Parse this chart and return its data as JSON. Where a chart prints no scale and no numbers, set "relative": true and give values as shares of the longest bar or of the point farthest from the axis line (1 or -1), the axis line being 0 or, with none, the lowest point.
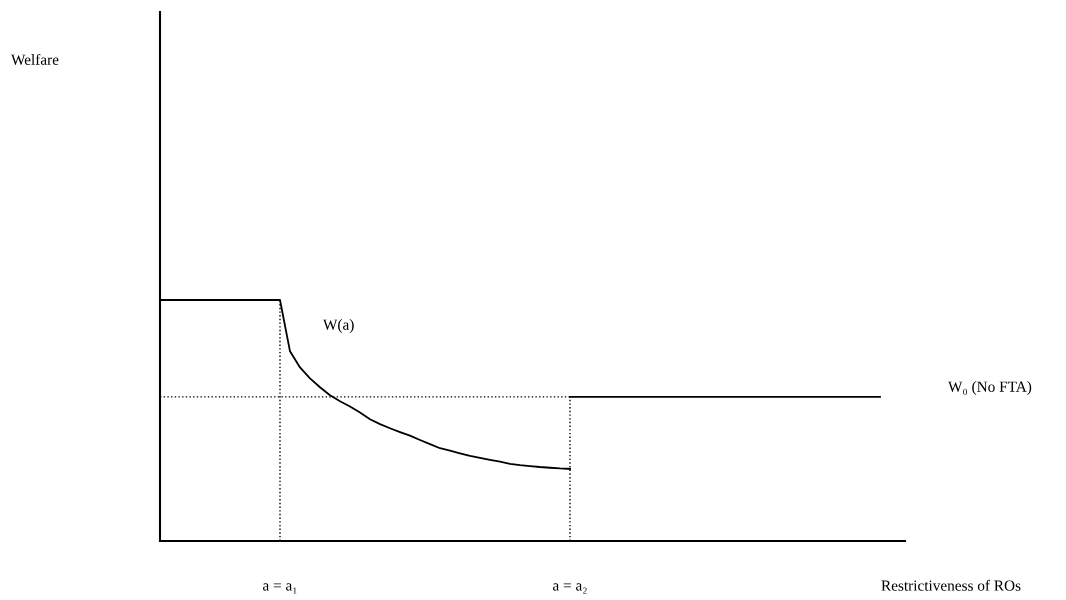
{
  "chart_data": {
    "type": "line",
    "relative": true,
    "xlabel": "Restrictiveness of ROs",
    "categories": [
      null,
      null,
      null,
      null,
      null,
      null,
      null,
      null,
      null,
      null,
      null,
      null,
      "a = a₁",
      null,
      null,
      null,
      null,
      null,
      null,
      null,
      null,
      null,
      null,
      null,
      null,
      null,
      null,
      null,
      null,
      null,
      null,
      null,
      null,
      null,
      null,
      null,
      null,
      null,
      null,
      null,
      null,
      "a = a₂",
      null,
      null,
      null,
      null,
      null,
      null,
      null,
      null,
      null,
      null,
      null,
      null,
      null,
      null,
      null,
      null,
      null,
      null,
      null,
      null,
      null,
      null,
      null,
      null,
      null,
      null,
      null,
      null,
      null,
      null,
      null
    ],
    "series": [
      {
        "color": "#000000",
        "line_style": "solid",
        "values": [
          1,
          1,
          1,
          1,
          1,
          1,
          1,
          1,
          1,
          1,
          1,
          1,
          1,
          0.787,
          0.72,
          0.675,
          0.638,
          0.605,
          0.58,
          0.558,
          0.533,
          0.505,
          0.485,
          0.468,
          0.452,
          0.437,
          0.419,
          0.402,
          0.385,
          0.375,
          0.364,
          0.353,
          0.345,
          0.337,
          0.329,
          0.32,
          0.315,
          0.311,
          0.307,
          0.304,
          0.301,
          0.299,
          null,
          null,
          null,
          null,
          null,
          null,
          null,
          null,
          null,
          null,
          null,
          null,
          null,
          null,
          null,
          null,
          null,
          null,
          null,
          null,
          null,
          null,
          null,
          null,
          null,
          null,
          null,
          null,
          null,
          null,
          null
        ]
      },
      {
        "color": "#000000",
        "line_style": "solid",
        "values": [
          null,
          null,
          null,
          null,
          null,
          null,
          null,
          null,
          null,
          null,
          null,
          null,
          null,
          null,
          null,
          null,
          null,
          null,
          null,
          null,
          null,
          null,
          null,
          null,
          null,
          null,
          null,
          null,
          null,
          null,
          null,
          null,
          null,
          null,
          null,
          null,
          null,
          null,
          null,
          null,
          null,
          0.598,
          0.598,
          0.598,
          0.598,
          0.598,
          0.598,
          0.598,
          0.598,
          0.598,
          0.598,
          0.598,
          0.598,
          0.598,
          0.598,
          0.598,
          0.598,
          0.598,
          0.598,
          0.598,
          0.598,
          0.598,
          0.598,
          0.598,
          0.598,
          0.598,
          0.598,
          0.598,
          0.598,
          0.598,
          0.598,
          0.598,
          0.598
        ]
      },
      {
        "color": "#000000",
        "line_style": "dotted",
        "values": [
          0.598,
          0.598,
          0.598,
          0.598,
          0.598,
          0.598,
          0.598,
          0.598,
          0.598,
          0.598,
          0.598,
          0.598,
          0.598,
          0.598,
          0.598,
          0.598,
          0.598,
          0.598,
          0.598,
          0.598,
          0.598,
          0.598,
          0.598,
          0.598,
          0.598,
          0.598,
          0.598,
          0.598,
          0.598,
          0.598,
          0.598,
          0.598,
          0.598,
          0.598,
          0.598,
          0.598,
          0.598,
          0.598,
          0.598,
          0.598,
          0.598,
          0.598,
          null,
          null,
          null,
          null,
          null,
          null,
          null,
          null,
          null,
          null,
          null,
          null,
          null,
          null,
          null,
          null,
          null,
          null,
          null,
          null,
          null,
          null,
          null,
          null,
          null,
          null,
          null,
          null,
          null,
          null,
          null
        ]
      }
    ],
    "ref_lines": [
      {
        "axis": "x",
        "value": "a = a₁",
        "line_style": "dotted",
        "color": "#000000"
      },
      {
        "axis": "x",
        "value": "a = a₂",
        "line_style": "dotted",
        "color": "#000000"
      }
    ],
    "annotations": [
      "Welfare",
      "W(a)",
      "W₀ (No FTA)"
    ],
    "grid": false,
    "legend": false,
    "marker": "none"
  }
}
